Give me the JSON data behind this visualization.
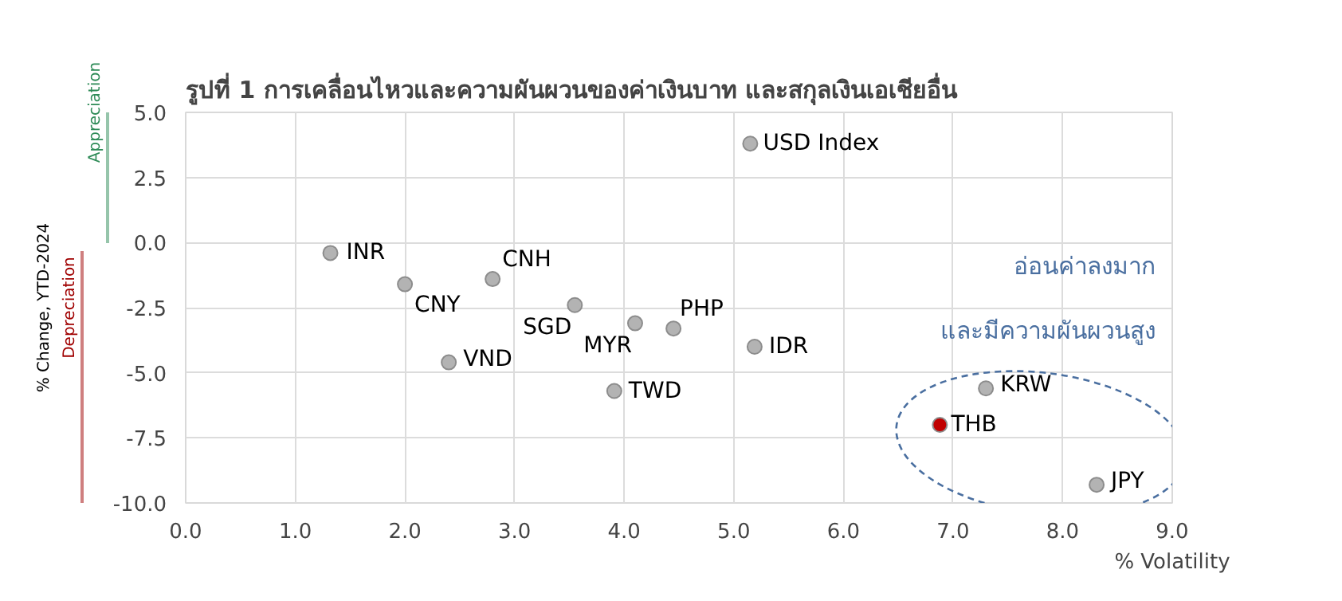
{
  "chart_data": {
    "type": "scatter",
    "title": "รูปที่ 1 การเคลื่อนไหวและความผันผวนของค่าเงินบาท และสกุลเงินเอเชียอื่น",
    "xlabel": "% Volatility",
    "ylabel": "% Change, YTD-2024",
    "series": [
      {
        "x": [
          5.15,
          1.32,
          2.0,
          2.8,
          3.55,
          4.1,
          4.45,
          5.19,
          2.4,
          3.91,
          7.3,
          6.88,
          8.31
        ],
        "values": [
          3.8,
          -0.4,
          -1.6,
          -1.4,
          -2.4,
          -3.1,
          -3.3,
          -4.0,
          -4.6,
          -5.7,
          -5.6,
          -7.0,
          -9.3
        ],
        "colors": [
          "#b3b3b3",
          "#b3b3b3",
          "#b3b3b3",
          "#b3b3b3",
          "#b3b3b3",
          "#b3b3b3",
          "#b3b3b3",
          "#b3b3b3",
          "#b3b3b3",
          "#b3b3b3",
          "#b3b3b3",
          "#c00000",
          "#b3b3b3"
        ]
      }
    ],
    "xlim": [
      0,
      9
    ],
    "xticks": [
      {
        "value": 0,
        "label": "0.0"
      },
      {
        "value": 1,
        "label": "1.0"
      },
      {
        "value": 2,
        "label": "2.0"
      },
      {
        "value": 3,
        "label": "3.0"
      },
      {
        "value": 4,
        "label": "4.0"
      },
      {
        "value": 5,
        "label": "5.0"
      },
      {
        "value": 6,
        "label": "6.0"
      },
      {
        "value": 7,
        "label": "7.0"
      },
      {
        "value": 8,
        "label": "8.0"
      },
      {
        "value": 9,
        "label": "9.0"
      }
    ],
    "ylim": [
      -10,
      5
    ],
    "yticks": [
      {
        "value": -10,
        "label": "-10.0"
      },
      {
        "value": -7.5,
        "label": "-7.5"
      },
      {
        "value": -5,
        "label": "-5.0"
      },
      {
        "value": -2.5,
        "label": "-2.5"
      },
      {
        "value": 0,
        "label": "0.0"
      },
      {
        "value": 2.5,
        "label": "2.5"
      },
      {
        "value": 5,
        "label": "5.0"
      }
    ],
    "grid": true,
    "marker": "circle",
    "annotations": [
      "Appreciation",
      "Depreciation",
      "อ่อนค่าลงมาก",
      "และมีความผันผวนสูง",
      {
        "text": "USD Index",
        "x": 5.15,
        "y": 3.8
      },
      {
        "text": "INR",
        "x": 1.32,
        "y": -0.4
      },
      {
        "text": "CNY",
        "x": 2.0,
        "y": -1.6
      },
      {
        "text": "CNH",
        "x": 2.8,
        "y": -1.4
      },
      {
        "text": "SGD",
        "x": 3.55,
        "y": -2.4
      },
      {
        "text": "MYR",
        "x": 4.1,
        "y": -3.1
      },
      {
        "text": "PHP",
        "x": 4.45,
        "y": -3.3
      },
      {
        "text": "IDR",
        "x": 5.19,
        "y": -4.0
      },
      {
        "text": "VND",
        "x": 2.4,
        "y": -4.6
      },
      {
        "text": "TWD",
        "x": 3.91,
        "y": -5.7
      },
      {
        "text": "KRW",
        "x": 7.3,
        "y": -5.6
      },
      {
        "text": "THB",
        "x": 6.88,
        "y": -7.0
      },
      {
        "text": "JPY",
        "x": 8.31,
        "y": -9.3
      }
    ]
  }
}
